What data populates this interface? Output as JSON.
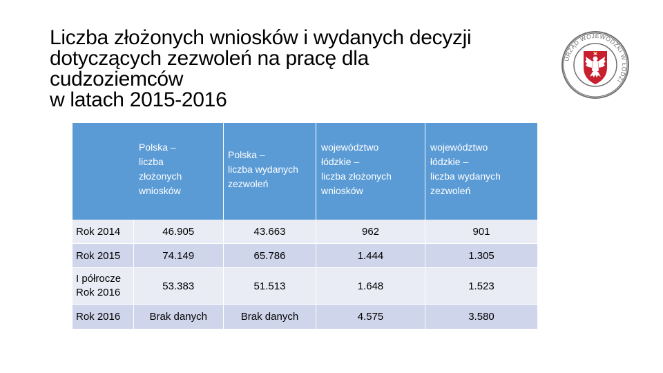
{
  "slide": {
    "title_lines": [
      "Liczba złożonych wniosków i wydanych decyzji",
      "dotyczących zezwoleń na pracę dla",
      "cudzoziemców",
      "w latach 2015-2016"
    ]
  },
  "logo": {
    "ring_text": "URZĄD WOJEWÓDZKI W ŁODZI",
    "icon": "eagle-emblem",
    "colors": {
      "ring": "#6f6f6f",
      "shield": "#c8202f",
      "eagle": "#ffffff"
    }
  },
  "table": {
    "headers": [
      "",
      "Polska – liczba złożonych wniosków",
      "Polska – liczba wydanych zezwoleń",
      "województwo łódzkie – liczba złożonych wniosków",
      "województwo łódzkie – liczba wydanych zezwoleń"
    ],
    "header_lines": [
      [],
      [
        "Polska –",
        "liczba",
        "złożonych",
        "wniosków"
      ],
      [
        "Polska –",
        "liczba wydanych",
        "zezwoleń"
      ],
      [
        "województwo",
        "łódzkie –",
        "liczba złożonych",
        "wniosków"
      ],
      [
        "województwo",
        "łódzkie –",
        "liczba wydanych",
        "zezwoleń"
      ]
    ],
    "rows": [
      {
        "label_lines": [
          "Rok 2014"
        ],
        "values": [
          "46.905",
          "43.663",
          "962",
          "901"
        ]
      },
      {
        "label_lines": [
          "Rok 2015"
        ],
        "values": [
          "74.149",
          "65.786",
          "1.444",
          "1.305"
        ]
      },
      {
        "label_lines": [
          "I półrocze",
          "Rok 2016"
        ],
        "values": [
          "53.383",
          "51.513",
          "1.648",
          "1.523"
        ]
      },
      {
        "label_lines": [
          "Rok 2016"
        ],
        "values": [
          "Brak danych",
          "Brak danych",
          "4.575",
          "3.580"
        ]
      }
    ],
    "colors": {
      "header": "#5b9bd5",
      "row_light": "#e9ebf5",
      "row_dark": "#cfd5ea"
    }
  }
}
